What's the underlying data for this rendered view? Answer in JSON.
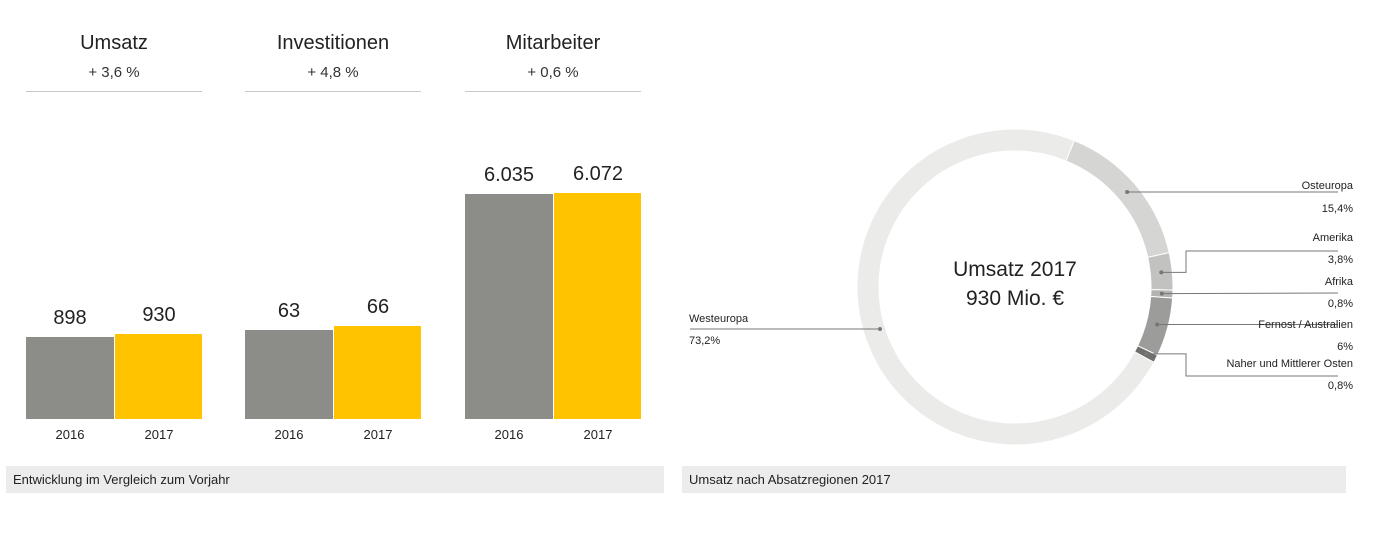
{
  "left": {
    "caption": "Entwicklung im Vergleich zum Vorjahr"
  },
  "right": {
    "caption": "Umsatz nach Absatzregionen 2017"
  },
  "colors": {
    "prev_year": "#8c8c88",
    "current_year": "#ffc300",
    "caption_bg": "#ececec",
    "rule": "#c8c8c8"
  },
  "chart_data": [
    {
      "type": "bar",
      "title": "Umsatz",
      "subtitle": "+ 3,6 %",
      "categories": [
        "2016",
        "2017"
      ],
      "values": [
        898,
        930
      ],
      "value_labels": [
        "898",
        "930"
      ]
    },
    {
      "type": "bar",
      "title": "Investitionen",
      "subtitle": "+ 4,8 %",
      "categories": [
        "2016",
        "2017"
      ],
      "values": [
        63,
        66
      ],
      "value_labels": [
        "63",
        "66"
      ]
    },
    {
      "type": "bar",
      "title": "Mitarbeiter",
      "subtitle": "+ 0,6 %",
      "categories": [
        "2016",
        "2017"
      ],
      "values": [
        6035,
        6072
      ],
      "value_labels": [
        "6.035",
        "6.072"
      ]
    },
    {
      "type": "pie",
      "title": "Umsatz nach Absatzregionen 2017",
      "center_line1": "Umsatz 2017",
      "center_line2": "930 Mio. €",
      "slices": [
        {
          "name": "Osteuropa",
          "label": "15,4%",
          "value": 15.4,
          "color": "#d5d5d3"
        },
        {
          "name": "Amerika",
          "label": "3,8%",
          "value": 3.8,
          "color": "#c2c2c0"
        },
        {
          "name": "Afrika",
          "label": "0,8%",
          "value": 0.8,
          "color": "#b3b3b1"
        },
        {
          "name": "Fernost / Australien",
          "label": "6%",
          "value": 6.0,
          "color": "#9c9c9a"
        },
        {
          "name": "Naher und Mittlerer Osten",
          "label": "0,8%",
          "value": 0.8,
          "color": "#6f6f6d"
        },
        {
          "name": "Westeuropa",
          "label": "73,2%",
          "value": 73.2,
          "color": "#ebebea"
        }
      ]
    }
  ]
}
